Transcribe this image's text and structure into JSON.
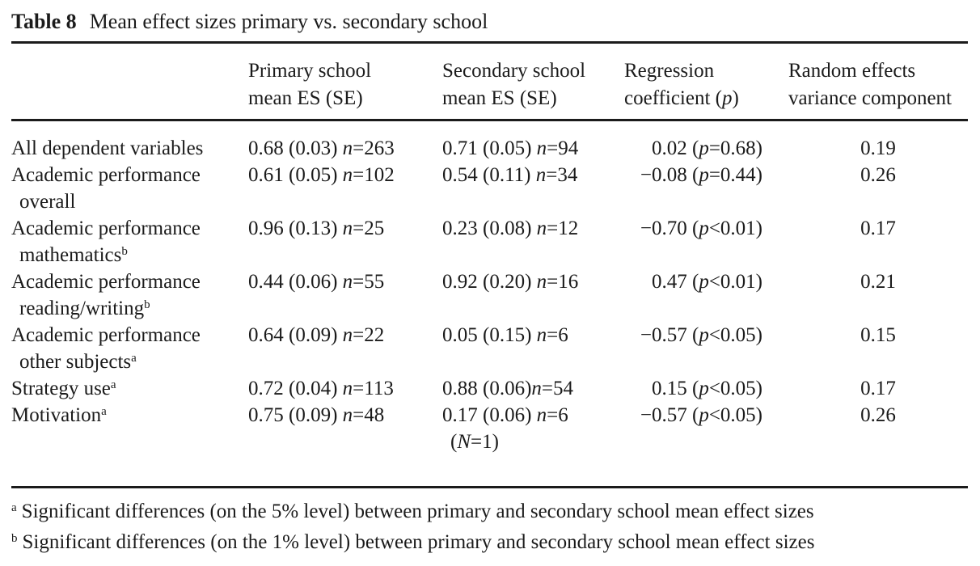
{
  "colors": {
    "text": "#1b1b1b",
    "rule": "#1b1b1b",
    "background": "#ffffff"
  },
  "title": {
    "label": "Table 8",
    "text": "Mean effect sizes primary vs. secondary school"
  },
  "header": {
    "col1": "",
    "col2": {
      "l1": "Primary school",
      "l2": "mean ES (SE)"
    },
    "col3": {
      "l1": "Secondary school",
      "l2": "mean ES (SE)"
    },
    "col4": {
      "l1": "Regression",
      "l2": [
        {
          "t": "coefficient ("
        },
        {
          "t": "p",
          "i": true
        },
        {
          "t": ")"
        }
      ]
    },
    "col5": {
      "l1": "Random effects",
      "l2": "variance component"
    }
  },
  "rows": [
    {
      "label1": [
        {
          "t": "All dependent variables"
        }
      ],
      "primary": [
        {
          "t": "0.68 (0.03) "
        },
        {
          "t": "n",
          "i": true
        },
        {
          "t": "=263"
        }
      ],
      "secondary": [
        {
          "t": "0.71 (0.05) "
        },
        {
          "t": "n",
          "i": true
        },
        {
          "t": "=94"
        }
      ],
      "regression": [
        {
          "t": "0.02 ("
        },
        {
          "t": "p",
          "i": true
        },
        {
          "t": "=0.68)"
        }
      ],
      "variance": "0.19"
    },
    {
      "label1": [
        {
          "t": "Academic performance"
        }
      ],
      "label2": [
        {
          "t": "overall"
        }
      ],
      "primary": [
        {
          "t": "0.61 (0.05) "
        },
        {
          "t": "n",
          "i": true
        },
        {
          "t": "=102"
        }
      ],
      "secondary": [
        {
          "t": "0.54 (0.11) "
        },
        {
          "t": "n",
          "i": true
        },
        {
          "t": "=34"
        }
      ],
      "regression": [
        {
          "t": "−0.08 ("
        },
        {
          "t": "p",
          "i": true
        },
        {
          "t": "=0.44)"
        }
      ],
      "variance": "0.26"
    },
    {
      "label1": [
        {
          "t": "Academic performance"
        }
      ],
      "label2": [
        {
          "t": "mathematics"
        },
        {
          "t": "b",
          "sup": true
        }
      ],
      "primary": [
        {
          "t": "0.96 (0.13) "
        },
        {
          "t": "n",
          "i": true
        },
        {
          "t": "=25"
        }
      ],
      "secondary": [
        {
          "t": "0.23 (0.08) "
        },
        {
          "t": "n",
          "i": true
        },
        {
          "t": "=12"
        }
      ],
      "regression": [
        {
          "t": "−0.70 ("
        },
        {
          "t": "p",
          "i": true
        },
        {
          "t": "<0.01)"
        }
      ],
      "variance": "0.17"
    },
    {
      "label1": [
        {
          "t": "Academic performance"
        }
      ],
      "label2": [
        {
          "t": "reading/writing"
        },
        {
          "t": "b",
          "sup": true
        }
      ],
      "primary": [
        {
          "t": "0.44 (0.06) "
        },
        {
          "t": "n",
          "i": true
        },
        {
          "t": "=55"
        }
      ],
      "secondary": [
        {
          "t": "0.92 (0.20) "
        },
        {
          "t": "n",
          "i": true
        },
        {
          "t": "=16"
        }
      ],
      "regression": [
        {
          "t": "0.47 ("
        },
        {
          "t": "p",
          "i": true
        },
        {
          "t": "<0.01)"
        }
      ],
      "variance": "0.21"
    },
    {
      "label1": [
        {
          "t": "Academic performance"
        }
      ],
      "label2": [
        {
          "t": "other subjects"
        },
        {
          "t": "a",
          "sup": true
        }
      ],
      "primary": [
        {
          "t": "0.64 (0.09) "
        },
        {
          "t": "n",
          "i": true
        },
        {
          "t": "=22"
        }
      ],
      "secondary": [
        {
          "t": "0.05 (0.15) "
        },
        {
          "t": "n",
          "i": true
        },
        {
          "t": "=6"
        }
      ],
      "regression": [
        {
          "t": "−0.57 ("
        },
        {
          "t": "p",
          "i": true
        },
        {
          "t": "<0.05)"
        }
      ],
      "variance": "0.15"
    },
    {
      "label1": [
        {
          "t": "Strategy use"
        },
        {
          "t": "a",
          "sup": true
        }
      ],
      "primary": [
        {
          "t": "0.72 (0.04) "
        },
        {
          "t": "n",
          "i": true
        },
        {
          "t": "=113"
        }
      ],
      "secondary": [
        {
          "t": "0.88 (0.06)"
        },
        {
          "t": "n",
          "i": true
        },
        {
          "t": "=54"
        }
      ],
      "regression": [
        {
          "t": "0.15 ("
        },
        {
          "t": "p",
          "i": true
        },
        {
          "t": "<0.05)"
        }
      ],
      "variance": "0.17"
    },
    {
      "label1": [
        {
          "t": "Motivation"
        },
        {
          "t": "a",
          "sup": true
        }
      ],
      "primary": [
        {
          "t": "0.75 (0.09) "
        },
        {
          "t": "n",
          "i": true
        },
        {
          "t": "=48"
        }
      ],
      "secondary": [
        {
          "t": "0.17 (0.06) "
        },
        {
          "t": "n",
          "i": true
        },
        {
          "t": "=6"
        }
      ],
      "secondary2": [
        {
          "t": "("
        },
        {
          "t": "N",
          "i": true
        },
        {
          "t": "=1)"
        }
      ],
      "regression": [
        {
          "t": "−0.57 ("
        },
        {
          "t": "p",
          "i": true
        },
        {
          "t": "<0.05)"
        }
      ],
      "variance": "0.26"
    }
  ],
  "footnotes": [
    {
      "marker": "a",
      "text": "Significant differences (on the 5% level) between primary and secondary school mean effect sizes"
    },
    {
      "marker": "b",
      "text": "Significant differences (on the 1% level) between primary and secondary school mean effect sizes"
    }
  ]
}
